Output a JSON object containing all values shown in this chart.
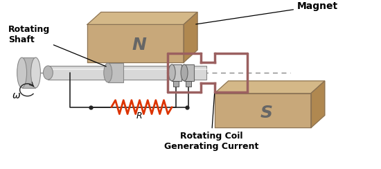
{
  "bg_color": "#ffffff",
  "magnet_color_light": "#c8a87a",
  "magnet_color_face": "#c8a87a",
  "magnet_color_side": "#b08850",
  "magnet_color_top": "#d4b888",
  "magnet_edge": "#8B7355",
  "magnet_N_label": "N",
  "magnet_S_label": "S",
  "coil_color": "#9b6060",
  "shaft_color": "#d8d8d8",
  "shaft_color2": "#b8b8b8",
  "shaft_edge": "#888888",
  "resistor_color": "#dd3300",
  "wire_color": "#222222",
  "dashed_color": "#888888",
  "label_rotating_shaft": "Rotating\nShaft",
  "label_magnet": "Magnet",
  "label_coil": "Rotating Coil\nGenerating Current",
  "label_omega": "ω",
  "label_R": "R",
  "label_fontsize": 9
}
